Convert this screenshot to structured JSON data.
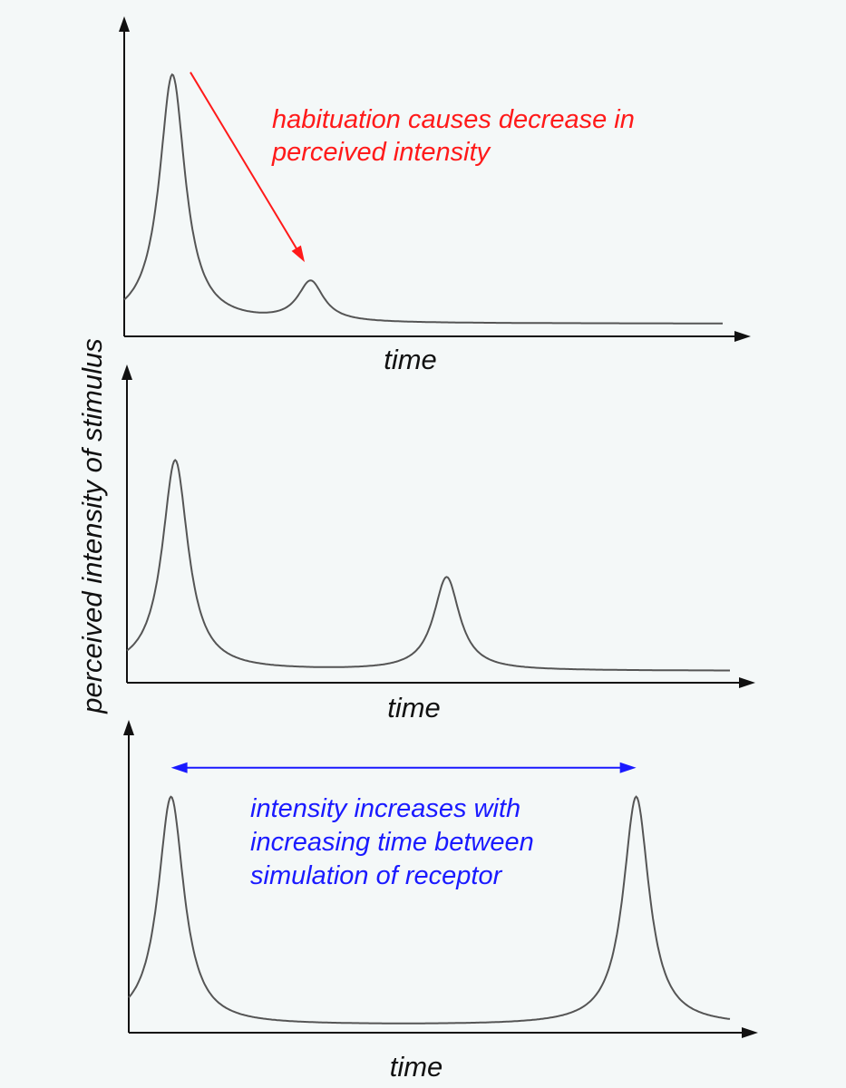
{
  "colors": {
    "background": "#f4f8f8",
    "axis": "#111111",
    "curve": "#555555",
    "red_note": "#ff1a1a",
    "blue_note": "#1a1aff"
  },
  "ylabel": "perceived intensity of stimulus",
  "chart_data": [
    {
      "type": "line",
      "xlabel": "time",
      "xlim": [
        0,
        100
      ],
      "ylim": [
        0,
        100
      ],
      "peaks": [
        {
          "x": 8,
          "height": 93
        },
        {
          "x": 31,
          "height": 15
        }
      ],
      "annotation": {
        "lines": [
          "habituation causes decrease in",
          "perceived intensity"
        ],
        "color": "#ff1a1a",
        "arrow_from": [
          11,
          94
        ],
        "arrow_to": [
          30,
          23
        ]
      }
    },
    {
      "type": "line",
      "xlabel": "time",
      "xlim": [
        0,
        100
      ],
      "ylim": [
        0,
        100
      ],
      "peaks": [
        {
          "x": 8,
          "height": 79
        },
        {
          "x": 53,
          "height": 35
        }
      ]
    },
    {
      "type": "line",
      "xlabel": "time",
      "xlim": [
        0,
        100
      ],
      "ylim": [
        0,
        100
      ],
      "peaks": [
        {
          "x": 7,
          "height": 86
        },
        {
          "x": 84,
          "height": 86
        }
      ],
      "annotation": {
        "lines": [
          "intensity increases with",
          "increasing time between",
          "simulation of receptor"
        ],
        "color": "#1a1aff",
        "arrow_from": [
          7,
          97
        ],
        "arrow_to": [
          84,
          97
        ],
        "double_headed": true
      }
    }
  ]
}
